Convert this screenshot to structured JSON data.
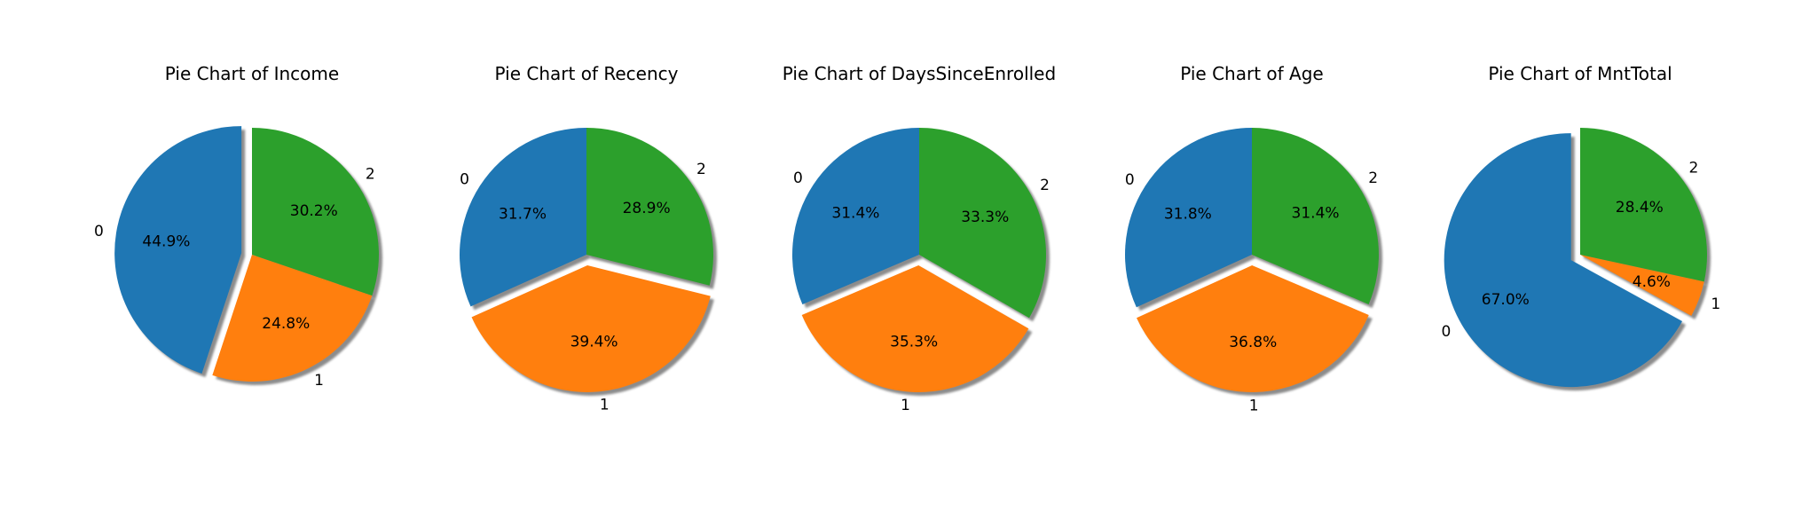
{
  "chart_data": [
    {
      "type": "pie",
      "title": "Pie Chart of Income",
      "categories": [
        "0",
        "1",
        "2"
      ],
      "values": [
        44.9,
        24.8,
        30.2
      ],
      "value_labels": [
        "44.9%",
        "24.8%",
        "30.2%"
      ],
      "colors": [
        "#1f77b4",
        "#ff7f0e",
        "#2ca02c"
      ],
      "exploded": "0",
      "shadow": true
    },
    {
      "type": "pie",
      "title": "Pie Chart of Recency",
      "categories": [
        "0",
        "1",
        "2"
      ],
      "values": [
        31.7,
        39.4,
        28.9
      ],
      "value_labels": [
        "31.7%",
        "39.4%",
        "28.9%"
      ],
      "colors": [
        "#1f77b4",
        "#ff7f0e",
        "#2ca02c"
      ],
      "exploded": "1",
      "shadow": true
    },
    {
      "type": "pie",
      "title": "Pie Chart of DaysSinceEnrolled",
      "categories": [
        "0",
        "1",
        "2"
      ],
      "values": [
        31.4,
        35.3,
        33.3
      ],
      "value_labels": [
        "31.4%",
        "35.3%",
        "33.3%"
      ],
      "colors": [
        "#1f77b4",
        "#ff7f0e",
        "#2ca02c"
      ],
      "exploded": "1",
      "shadow": true
    },
    {
      "type": "pie",
      "title": "Pie Chart of Age",
      "categories": [
        "0",
        "1",
        "2"
      ],
      "values": [
        31.8,
        36.8,
        31.4
      ],
      "value_labels": [
        "31.8%",
        "36.8%",
        "31.4%"
      ],
      "colors": [
        "#1f77b4",
        "#ff7f0e",
        "#2ca02c"
      ],
      "exploded": "1",
      "shadow": true
    },
    {
      "type": "pie",
      "title": "Pie Chart of MntTotal",
      "categories": [
        "0",
        "1",
        "2"
      ],
      "values": [
        67.0,
        4.6,
        28.4
      ],
      "value_labels": [
        "67.0%",
        "4.6%",
        "28.4%"
      ],
      "colors": [
        "#1f77b4",
        "#ff7f0e",
        "#2ca02c"
      ],
      "exploded": "0",
      "shadow": true
    }
  ]
}
